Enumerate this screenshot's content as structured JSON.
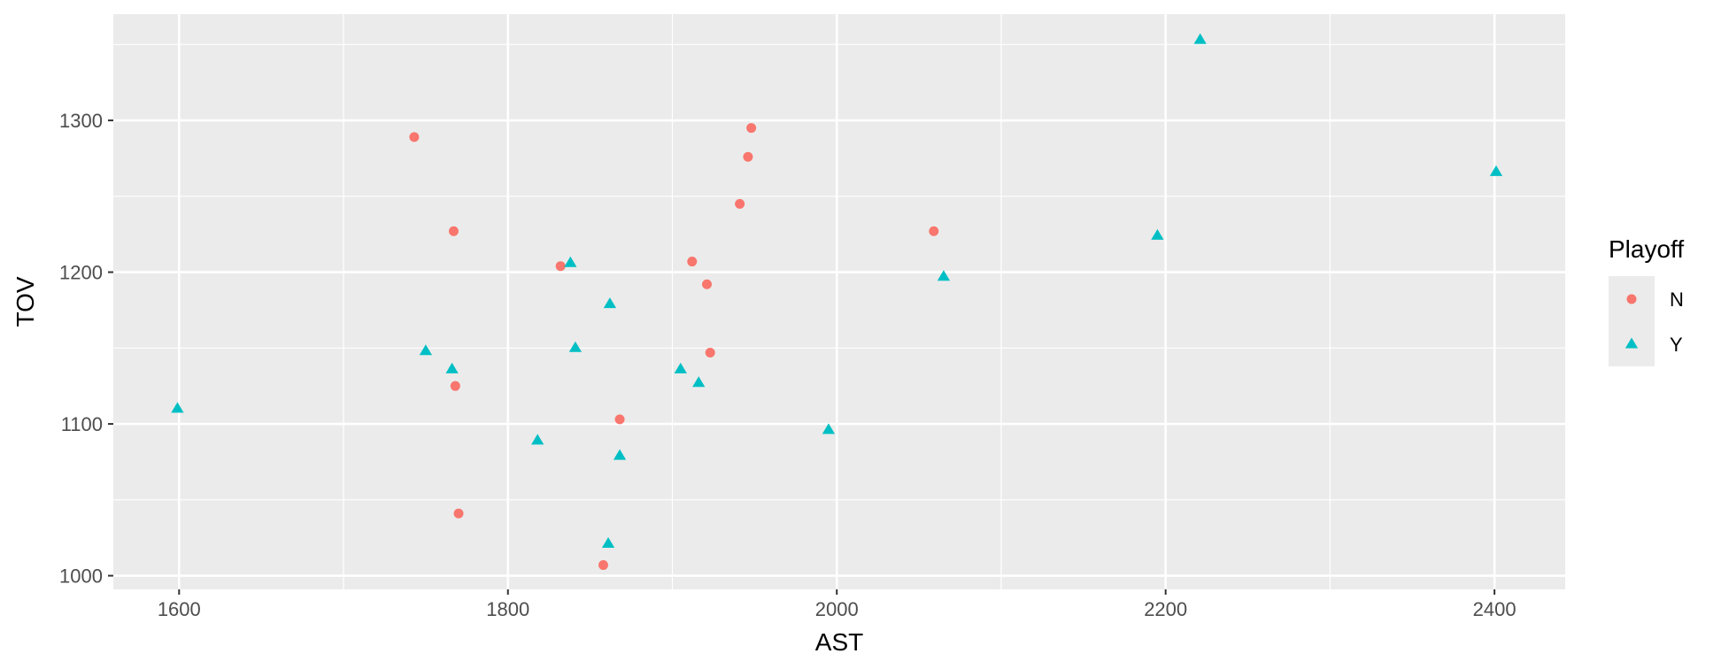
{
  "chart_data": {
    "type": "scatter",
    "xlabel": "AST",
    "ylabel": "TOV",
    "xlim": [
      1560,
      2443
    ],
    "ylim": [
      991,
      1370
    ],
    "x_ticks": [
      1600,
      1800,
      2000,
      2200,
      2400
    ],
    "y_ticks": [
      1000,
      1100,
      1200,
      1300
    ],
    "grid": true,
    "legend": {
      "title": "Playoff",
      "position": "right",
      "entries": [
        {
          "label": "N",
          "shape": "circle",
          "color": "#F8766D"
        },
        {
          "label": "Y",
          "shape": "triangle",
          "color": "#00BFC4"
        }
      ]
    },
    "series": [
      {
        "name": "N",
        "shape": "circle",
        "color": "#F8766D",
        "points": [
          {
            "x": 1743,
            "y": 1289
          },
          {
            "x": 1767,
            "y": 1227
          },
          {
            "x": 1768,
            "y": 1125
          },
          {
            "x": 1770,
            "y": 1041
          },
          {
            "x": 1832,
            "y": 1204
          },
          {
            "x": 1858,
            "y": 1007
          },
          {
            "x": 1868,
            "y": 1103
          },
          {
            "x": 1912,
            "y": 1207
          },
          {
            "x": 1921,
            "y": 1192
          },
          {
            "x": 1923,
            "y": 1147
          },
          {
            "x": 1941,
            "y": 1245
          },
          {
            "x": 1946,
            "y": 1276
          },
          {
            "x": 1948,
            "y": 1295
          },
          {
            "x": 2059,
            "y": 1227
          }
        ]
      },
      {
        "name": "Y",
        "shape": "triangle",
        "color": "#00BFC4",
        "points": [
          {
            "x": 1599,
            "y": 1110
          },
          {
            "x": 1750,
            "y": 1148
          },
          {
            "x": 1766,
            "y": 1136
          },
          {
            "x": 1818,
            "y": 1089
          },
          {
            "x": 1838,
            "y": 1206
          },
          {
            "x": 1841,
            "y": 1150
          },
          {
            "x": 1861,
            "y": 1021
          },
          {
            "x": 1862,
            "y": 1179
          },
          {
            "x": 1868,
            "y": 1079
          },
          {
            "x": 1905,
            "y": 1136
          },
          {
            "x": 1916,
            "y": 1127
          },
          {
            "x": 1995,
            "y": 1096
          },
          {
            "x": 2065,
            "y": 1197
          },
          {
            "x": 2195,
            "y": 1224
          },
          {
            "x": 2221,
            "y": 1353
          },
          {
            "x": 2401,
            "y": 1266
          }
        ]
      }
    ]
  }
}
